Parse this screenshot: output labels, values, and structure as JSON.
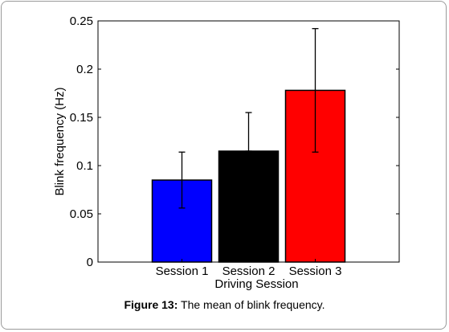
{
  "chart_data": {
    "type": "bar",
    "categories": [
      "Session 1",
      "Session 2",
      "Session 3"
    ],
    "values": [
      0.085,
      0.115,
      0.178
    ],
    "error_low": [
      0.056,
      0.115,
      0.114
    ],
    "error_high": [
      0.114,
      0.155,
      0.242
    ],
    "colors": [
      "#0000ff",
      "#000000",
      "#ff0000"
    ],
    "xlabel": "Driving Session",
    "ylabel": "Blink frequency (Hz)",
    "ylim": [
      0,
      0.25
    ],
    "yticks": [
      0,
      0.05,
      0.1,
      0.15,
      0.2,
      0.25
    ],
    "ytick_labels": [
      "0",
      "0.05",
      "0.1",
      "0.15",
      "0.2",
      "0.25"
    ],
    "grid": false
  },
  "caption": {
    "label": "Figure 13:",
    "text": " The mean of blink frequency."
  }
}
